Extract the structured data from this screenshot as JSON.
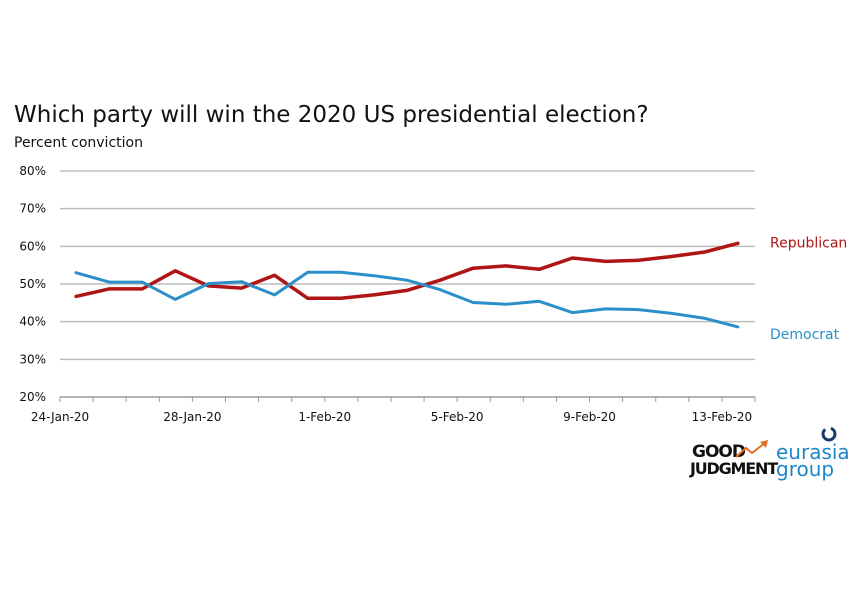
{
  "chart_data": {
    "type": "line",
    "title": "Which party will win the 2020 US presidential election?",
    "subtitle": "Percent conviction",
    "xlabel": "",
    "ylabel": "",
    "ylim": [
      20,
      80
    ],
    "yticks": [
      "20%",
      "30%",
      "40%",
      "50%",
      "60%",
      "70%",
      "80%"
    ],
    "yticks_values": [
      20,
      30,
      40,
      50,
      60,
      70,
      80
    ],
    "xlim": [
      "2020-01-24",
      "2020-02-14"
    ],
    "xticks": [
      {
        "date": "2020-01-24",
        "label": "24-Jan-20"
      },
      {
        "date": "2020-01-28",
        "label": "28-Jan-20"
      },
      {
        "date": "2020-02-01",
        "label": "1-Feb-20"
      },
      {
        "date": "2020-02-05",
        "label": "5-Feb-20"
      },
      {
        "date": "2020-02-09",
        "label": "9-Feb-20"
      },
      {
        "date": "2020-02-13",
        "label": "13-Feb-20"
      }
    ],
    "grid": true,
    "legend": "direct labels at right end of lines",
    "x": [
      "2020-01-24",
      "2020-01-25",
      "2020-01-26",
      "2020-01-27",
      "2020-01-28",
      "2020-01-29",
      "2020-01-30",
      "2020-01-31",
      "2020-02-01",
      "2020-02-02",
      "2020-02-03",
      "2020-02-04",
      "2020-02-05",
      "2020-02-06",
      "2020-02-07",
      "2020-02-08",
      "2020-02-09",
      "2020-02-10",
      "2020-02-11",
      "2020-02-12",
      "2020-02-13"
    ],
    "series": [
      {
        "name": "Republican",
        "color": "#b01515",
        "values": [
          46.7,
          48.7,
          48.7,
          53.5,
          49.5,
          48.9,
          52.3,
          46.2,
          46.2,
          47.1,
          48.3,
          51.0,
          54.2,
          54.8,
          53.9,
          56.9,
          56.0,
          56.3,
          57.3,
          58.5,
          60.8
        ]
      },
      {
        "name": "Democrat",
        "color": "#2b8fc9",
        "values": [
          53.0,
          50.5,
          50.5,
          45.9,
          50.1,
          50.6,
          47.1,
          53.1,
          53.1,
          52.2,
          51.0,
          48.5,
          45.1,
          44.6,
          45.4,
          42.4,
          43.4,
          43.2,
          42.2,
          40.9,
          38.6
        ]
      }
    ]
  },
  "logos": {
    "good_judgment": {
      "line1": "GOOD",
      "line2": "JUDGMENT",
      "text_color": "#111111",
      "arrow_color": "#e0702a"
    },
    "eurasia": {
      "line1": "eurasia",
      "line2": "group",
      "text_color": "#1f86c8",
      "mark_color": "#1a3a6b"
    }
  }
}
